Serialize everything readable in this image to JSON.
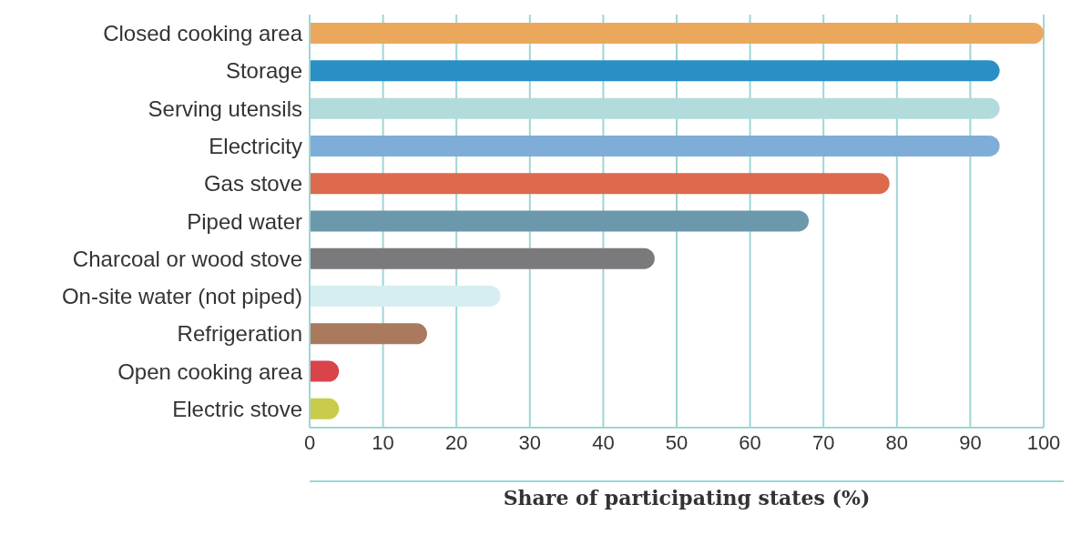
{
  "chart_data": {
    "type": "bar",
    "orientation": "horizontal",
    "xlabel": "Share of participating states (%)",
    "categories": [
      "Closed cooking area",
      "Storage",
      "Serving utensils",
      "Electricity",
      "Gas stove",
      "Piped water",
      "Charcoal or wood stove",
      "On-site water (not piped)",
      "Refrigeration",
      "Open cooking area",
      "Electric stove"
    ],
    "values": [
      100,
      94,
      94,
      94,
      79,
      68,
      47,
      26,
      16,
      4,
      4
    ],
    "colors": [
      "#eba85c",
      "#2a8fc4",
      "#b2dcdc",
      "#7eaed8",
      "#dc6a4b",
      "#6b98ab",
      "#7a7a7c",
      "#d6eef0",
      "#a97a5e",
      "#d9434a",
      "#c8cc4a"
    ],
    "xlim": [
      0,
      100
    ],
    "xticks": [
      0,
      10,
      20,
      30,
      40,
      50,
      60,
      70,
      80,
      90,
      100
    ],
    "grid": "x"
  }
}
